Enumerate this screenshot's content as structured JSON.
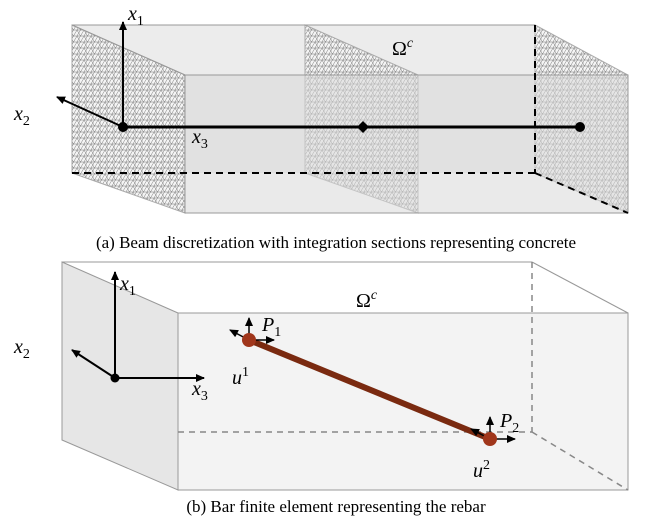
{
  "panel_a": {
    "caption": "(a) Beam discretization with integration sections representing concrete",
    "domain": {
      "base": "Ω",
      "sup": "c"
    },
    "axes": [
      {
        "base": "x",
        "sub": "1"
      },
      {
        "base": "x",
        "sub": "2"
      },
      {
        "base": "x",
        "sub": "3"
      }
    ]
  },
  "panel_b": {
    "caption": "(b) Bar finite element representing the rebar",
    "domain": {
      "base": "Ω",
      "sup": "c"
    },
    "axes": [
      {
        "base": "x",
        "sub": "1"
      },
      {
        "base": "x",
        "sub": "2"
      },
      {
        "base": "x",
        "sub": "3"
      }
    ],
    "forces": [
      {
        "base": "P",
        "sub": "1"
      },
      {
        "base": "P",
        "sub": "2"
      }
    ],
    "displacements": [
      {
        "base": "u",
        "sup": "1"
      },
      {
        "base": "u",
        "sup": "2"
      }
    ]
  }
}
